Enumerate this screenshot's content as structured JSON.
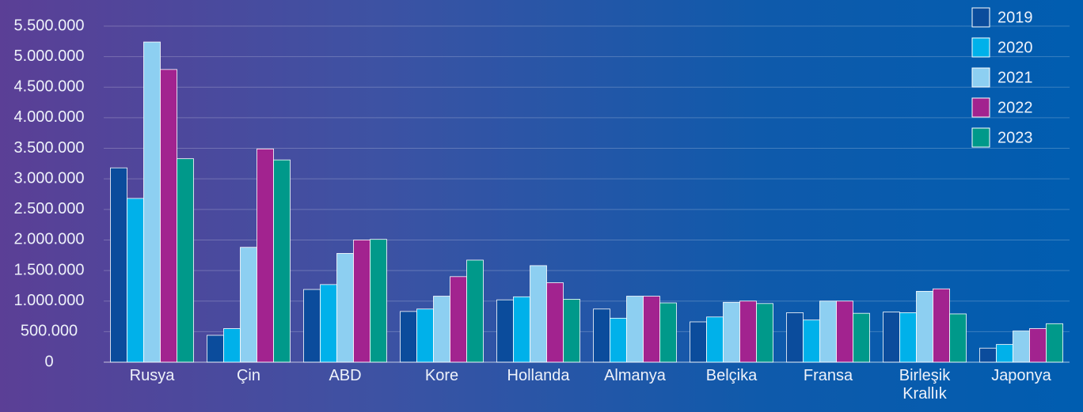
{
  "chart_data": {
    "type": "bar",
    "categories": [
      "Rusya",
      "Çin",
      "ABD",
      "Kore",
      "Hollanda",
      "Almanya",
      "Belçika",
      "Fransa",
      "Birleşik Krallık",
      "Japonya"
    ],
    "series": [
      {
        "name": "2019",
        "color": "#0b4c9c",
        "values": [
          3180000,
          440000,
          1190000,
          830000,
          1020000,
          870000,
          660000,
          810000,
          820000,
          230000
        ]
      },
      {
        "name": "2020",
        "color": "#00b1ea",
        "values": [
          2680000,
          550000,
          1270000,
          870000,
          1070000,
          720000,
          740000,
          690000,
          810000,
          290000
        ]
      },
      {
        "name": "2021",
        "color": "#8dcff1",
        "values": [
          5240000,
          1880000,
          1780000,
          1080000,
          1580000,
          1080000,
          980000,
          1000000,
          1160000,
          510000
        ]
      },
      {
        "name": "2022",
        "color": "#a2238f",
        "values": [
          4790000,
          3490000,
          2000000,
          1400000,
          1300000,
          1080000,
          1000000,
          1000000,
          1200000,
          550000
        ]
      },
      {
        "name": "2023",
        "color": "#00998a",
        "values": [
          3330000,
          3310000,
          2010000,
          1670000,
          1030000,
          970000,
          960000,
          800000,
          790000,
          630000
        ]
      }
    ],
    "ylim": [
      0,
      5500000
    ],
    "yticks": [
      0,
      {
        "value": 500000,
        "label": "500.000"
      },
      {
        "value": 1000000,
        "label": "1.000.000"
      },
      {
        "value": 1500000,
        "label": "1.500.000"
      },
      {
        "value": 2000000,
        "label": "2.000.000"
      },
      {
        "value": 2500000,
        "label": "2.500.000"
      },
      {
        "value": 3000000,
        "label": "3.000.000"
      },
      {
        "value": 3500000,
        "label": "3.500.000"
      },
      {
        "value": 4000000,
        "label": "4.000.000"
      },
      {
        "value": 4500000,
        "label": "4.500.000"
      },
      {
        "value": 5000000,
        "label": "5.000.000"
      },
      {
        "value": 5500000,
        "label": "5.500.000"
      }
    ],
    "grid": true,
    "legend": "top-right"
  }
}
